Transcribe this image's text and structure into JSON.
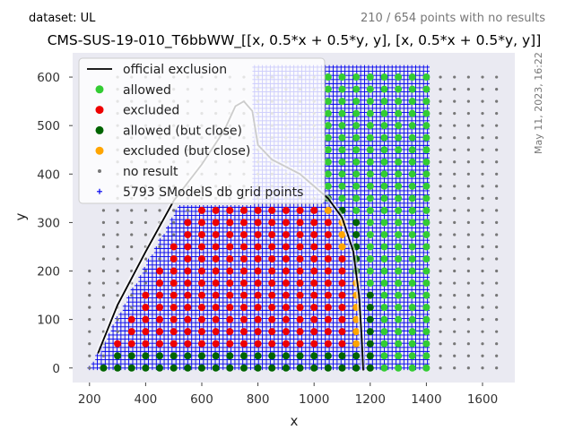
{
  "header": {
    "dataset_label": "dataset: UL",
    "no_result_summary": "210 / 654 points with no results",
    "timestamp": "May 11, 2023, 16:22"
  },
  "chart_data": {
    "type": "scatter",
    "title": "CMS-SUS-19-010_T6bbWW_[[x, 0.5*x + 0.5*y, y], [x, 0.5*x + 0.5*y, y]]",
    "xlabel": "x",
    "ylabel": "y",
    "xlim": [
      140,
      1715
    ],
    "ylim": [
      -30,
      650
    ],
    "xticks": [
      200,
      400,
      600,
      800,
      1000,
      1200,
      1400,
      1600
    ],
    "yticks": [
      0,
      100,
      200,
      300,
      400,
      500,
      600
    ],
    "grid": false,
    "legend_position": "top-left",
    "colors": {
      "plot_bg": "#eaeaf2",
      "official_exclusion": "#000000",
      "allowed": "#33cc33",
      "excluded": "#ee0000",
      "allowed_close": "#006400",
      "excluded_close": "#ffa500",
      "no_result": "#777777",
      "grid_points": "#0000ee"
    },
    "legend": [
      {
        "key": "official_exclusion",
        "label": "official exclusion",
        "marker": "line"
      },
      {
        "key": "allowed",
        "label": "allowed",
        "marker": "dot"
      },
      {
        "key": "excluded",
        "label": "excluded",
        "marker": "dot"
      },
      {
        "key": "allowed_close",
        "label": "allowed (but close)",
        "marker": "dot"
      },
      {
        "key": "excluded_close",
        "label": "excluded (but close)",
        "marker": "dot"
      },
      {
        "key": "no_result",
        "label": "no result",
        "marker": "small"
      },
      {
        "key": "grid_points",
        "label": "5793 SModelS db grid points",
        "marker": "plus"
      }
    ],
    "point_grid": {
      "x_start": 200,
      "x_end": 1650,
      "x_step": 50,
      "y_start": 0,
      "y_end": 600,
      "y_step": 25
    },
    "official_exclusion": {
      "x": [
        230,
        300,
        400,
        500,
        600,
        680,
        720,
        750,
        780,
        800,
        850,
        950,
        1050,
        1100,
        1140,
        1160,
        1170,
        1175
      ],
      "y": [
        30,
        130,
        240,
        345,
        420,
        490,
        540,
        550,
        530,
        460,
        430,
        400,
        350,
        310,
        240,
        150,
        60,
        -5
      ]
    }
  }
}
